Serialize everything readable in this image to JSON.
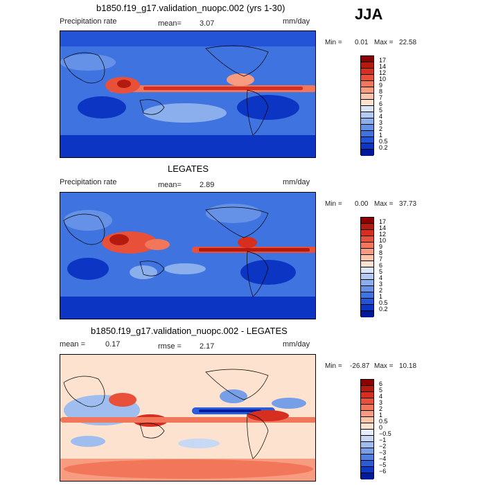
{
  "season": "JJA",
  "chart_data": [
    {
      "type": "heatmap",
      "title": "b1850.f19_g17.validation_nuopc.002 (yrs 1-30)",
      "field_label": "Precipitation rate",
      "stat_label": "mean=",
      "stat_value": "3.07",
      "units": "mm/day",
      "min_label": "Min =",
      "min_value": "0.01",
      "max_label": "Max =",
      "max_value": "22.58",
      "levels": [
        "17",
        "14",
        "12",
        "10",
        "9",
        "8",
        "7",
        "6",
        "5",
        "4",
        "3",
        "2",
        "1",
        "0.5",
        "0.2"
      ],
      "colors": [
        "#8b0000",
        "#b51a0f",
        "#d62f1f",
        "#e8503a",
        "#f2765a",
        "#f89c80",
        "#fcc4a8",
        "#fde3cf",
        "#dae6f8",
        "#b3cbf2",
        "#8aafec",
        "#6592e6",
        "#3f73e0",
        "#2354d8",
        "#0c35c4",
        "#00199c"
      ]
    },
    {
      "type": "heatmap",
      "title": "LEGATES",
      "field_label": "Precipitation rate",
      "stat_label": "mean=",
      "stat_value": "2.89",
      "units": "mm/day",
      "min_label": "Min =",
      "min_value": "0.00",
      "max_label": "Max =",
      "max_value": "37.73",
      "levels": [
        "17",
        "14",
        "12",
        "10",
        "9",
        "8",
        "7",
        "6",
        "5",
        "4",
        "3",
        "2",
        "1",
        "0.5",
        "0.2"
      ],
      "colors": [
        "#8b0000",
        "#b51a0f",
        "#d62f1f",
        "#e8503a",
        "#f2765a",
        "#f89c80",
        "#fcc4a8",
        "#fde3cf",
        "#dae6f8",
        "#b3cbf2",
        "#8aafec",
        "#6592e6",
        "#3f73e0",
        "#2354d8",
        "#0c35c4",
        "#00199c"
      ]
    },
    {
      "type": "heatmap",
      "title": "b1850.f19_g17.validation_nuopc.002 - LEGATES",
      "stat_label": "mean =",
      "stat_value": "0.17",
      "stat2_label": "rmse =",
      "stat2_value": "2.17",
      "units": "mm/day",
      "min_label": "Min =",
      "min_value": "-26.87",
      "max_label": "Max =",
      "max_value": "10.18",
      "levels": [
        "6",
        "5",
        "4",
        "3",
        "2",
        "1",
        "0.5",
        "0",
        "−0.5",
        "−1",
        "−2",
        "−3",
        "−4",
        "−5",
        "−6"
      ],
      "colors": [
        "#8b0000",
        "#b51a0f",
        "#d62f1f",
        "#e8503a",
        "#f2765a",
        "#f89c80",
        "#fcc4a8",
        "#fde3cf",
        "#e6eefa",
        "#c6d8f4",
        "#9fbdee",
        "#779fe8",
        "#4f80e2",
        "#2a5cd8",
        "#0e38c2",
        "#001a9c"
      ]
    }
  ]
}
